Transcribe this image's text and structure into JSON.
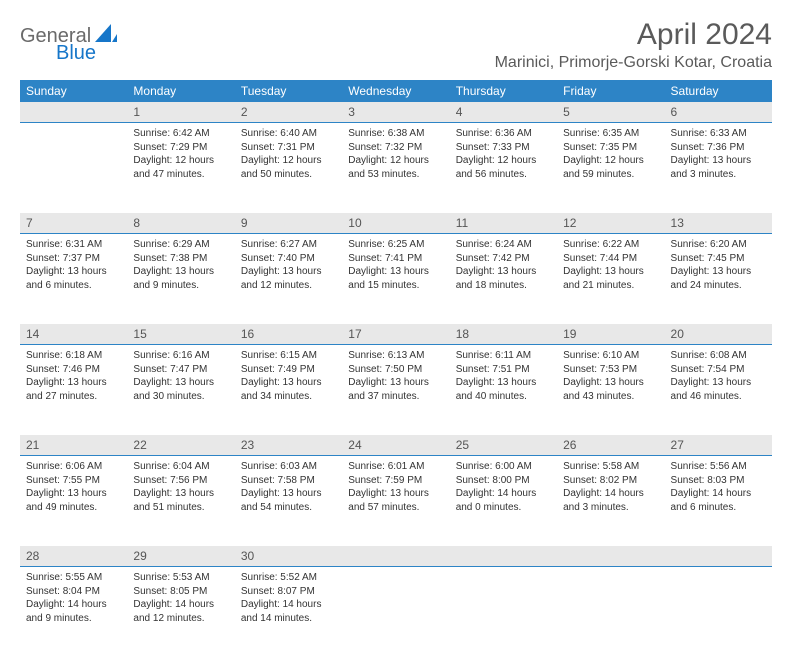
{
  "logo": {
    "word1": "General",
    "word2": "Blue"
  },
  "title": "April 2024",
  "location": "Marinici, Primorje-Gorski Kotar, Croatia",
  "colors": {
    "header_bg": "#2d84c6",
    "header_text": "#ffffff",
    "daynum_bg": "#e8e8e8",
    "daynum_text": "#555555",
    "body_text": "#333333",
    "logo_gray": "#6a6a6a",
    "logo_blue": "#1676c9",
    "page_bg": "#ffffff"
  },
  "fonts": {
    "title_size_pt": 22,
    "location_size_pt": 12,
    "header_size_pt": 9,
    "daynum_size_pt": 9,
    "body_size_pt": 7.5
  },
  "days_of_week": [
    "Sunday",
    "Monday",
    "Tuesday",
    "Wednesday",
    "Thursday",
    "Friday",
    "Saturday"
  ],
  "weeks": [
    [
      null,
      {
        "n": "1",
        "sunrise": "Sunrise: 6:42 AM",
        "sunset": "Sunset: 7:29 PM",
        "daylight": "Daylight: 12 hours and 47 minutes."
      },
      {
        "n": "2",
        "sunrise": "Sunrise: 6:40 AM",
        "sunset": "Sunset: 7:31 PM",
        "daylight": "Daylight: 12 hours and 50 minutes."
      },
      {
        "n": "3",
        "sunrise": "Sunrise: 6:38 AM",
        "sunset": "Sunset: 7:32 PM",
        "daylight": "Daylight: 12 hours and 53 minutes."
      },
      {
        "n": "4",
        "sunrise": "Sunrise: 6:36 AM",
        "sunset": "Sunset: 7:33 PM",
        "daylight": "Daylight: 12 hours and 56 minutes."
      },
      {
        "n": "5",
        "sunrise": "Sunrise: 6:35 AM",
        "sunset": "Sunset: 7:35 PM",
        "daylight": "Daylight: 12 hours and 59 minutes."
      },
      {
        "n": "6",
        "sunrise": "Sunrise: 6:33 AM",
        "sunset": "Sunset: 7:36 PM",
        "daylight": "Daylight: 13 hours and 3 minutes."
      }
    ],
    [
      {
        "n": "7",
        "sunrise": "Sunrise: 6:31 AM",
        "sunset": "Sunset: 7:37 PM",
        "daylight": "Daylight: 13 hours and 6 minutes."
      },
      {
        "n": "8",
        "sunrise": "Sunrise: 6:29 AM",
        "sunset": "Sunset: 7:38 PM",
        "daylight": "Daylight: 13 hours and 9 minutes."
      },
      {
        "n": "9",
        "sunrise": "Sunrise: 6:27 AM",
        "sunset": "Sunset: 7:40 PM",
        "daylight": "Daylight: 13 hours and 12 minutes."
      },
      {
        "n": "10",
        "sunrise": "Sunrise: 6:25 AM",
        "sunset": "Sunset: 7:41 PM",
        "daylight": "Daylight: 13 hours and 15 minutes."
      },
      {
        "n": "11",
        "sunrise": "Sunrise: 6:24 AM",
        "sunset": "Sunset: 7:42 PM",
        "daylight": "Daylight: 13 hours and 18 minutes."
      },
      {
        "n": "12",
        "sunrise": "Sunrise: 6:22 AM",
        "sunset": "Sunset: 7:44 PM",
        "daylight": "Daylight: 13 hours and 21 minutes."
      },
      {
        "n": "13",
        "sunrise": "Sunrise: 6:20 AM",
        "sunset": "Sunset: 7:45 PM",
        "daylight": "Daylight: 13 hours and 24 minutes."
      }
    ],
    [
      {
        "n": "14",
        "sunrise": "Sunrise: 6:18 AM",
        "sunset": "Sunset: 7:46 PM",
        "daylight": "Daylight: 13 hours and 27 minutes."
      },
      {
        "n": "15",
        "sunrise": "Sunrise: 6:16 AM",
        "sunset": "Sunset: 7:47 PM",
        "daylight": "Daylight: 13 hours and 30 minutes."
      },
      {
        "n": "16",
        "sunrise": "Sunrise: 6:15 AM",
        "sunset": "Sunset: 7:49 PM",
        "daylight": "Daylight: 13 hours and 34 minutes."
      },
      {
        "n": "17",
        "sunrise": "Sunrise: 6:13 AM",
        "sunset": "Sunset: 7:50 PM",
        "daylight": "Daylight: 13 hours and 37 minutes."
      },
      {
        "n": "18",
        "sunrise": "Sunrise: 6:11 AM",
        "sunset": "Sunset: 7:51 PM",
        "daylight": "Daylight: 13 hours and 40 minutes."
      },
      {
        "n": "19",
        "sunrise": "Sunrise: 6:10 AM",
        "sunset": "Sunset: 7:53 PM",
        "daylight": "Daylight: 13 hours and 43 minutes."
      },
      {
        "n": "20",
        "sunrise": "Sunrise: 6:08 AM",
        "sunset": "Sunset: 7:54 PM",
        "daylight": "Daylight: 13 hours and 46 minutes."
      }
    ],
    [
      {
        "n": "21",
        "sunrise": "Sunrise: 6:06 AM",
        "sunset": "Sunset: 7:55 PM",
        "daylight": "Daylight: 13 hours and 49 minutes."
      },
      {
        "n": "22",
        "sunrise": "Sunrise: 6:04 AM",
        "sunset": "Sunset: 7:56 PM",
        "daylight": "Daylight: 13 hours and 51 minutes."
      },
      {
        "n": "23",
        "sunrise": "Sunrise: 6:03 AM",
        "sunset": "Sunset: 7:58 PM",
        "daylight": "Daylight: 13 hours and 54 minutes."
      },
      {
        "n": "24",
        "sunrise": "Sunrise: 6:01 AM",
        "sunset": "Sunset: 7:59 PM",
        "daylight": "Daylight: 13 hours and 57 minutes."
      },
      {
        "n": "25",
        "sunrise": "Sunrise: 6:00 AM",
        "sunset": "Sunset: 8:00 PM",
        "daylight": "Daylight: 14 hours and 0 minutes."
      },
      {
        "n": "26",
        "sunrise": "Sunrise: 5:58 AM",
        "sunset": "Sunset: 8:02 PM",
        "daylight": "Daylight: 14 hours and 3 minutes."
      },
      {
        "n": "27",
        "sunrise": "Sunrise: 5:56 AM",
        "sunset": "Sunset: 8:03 PM",
        "daylight": "Daylight: 14 hours and 6 minutes."
      }
    ],
    [
      {
        "n": "28",
        "sunrise": "Sunrise: 5:55 AM",
        "sunset": "Sunset: 8:04 PM",
        "daylight": "Daylight: 14 hours and 9 minutes."
      },
      {
        "n": "29",
        "sunrise": "Sunrise: 5:53 AM",
        "sunset": "Sunset: 8:05 PM",
        "daylight": "Daylight: 14 hours and 12 minutes."
      },
      {
        "n": "30",
        "sunrise": "Sunrise: 5:52 AM",
        "sunset": "Sunset: 8:07 PM",
        "daylight": "Daylight: 14 hours and 14 minutes."
      },
      null,
      null,
      null,
      null
    ]
  ]
}
